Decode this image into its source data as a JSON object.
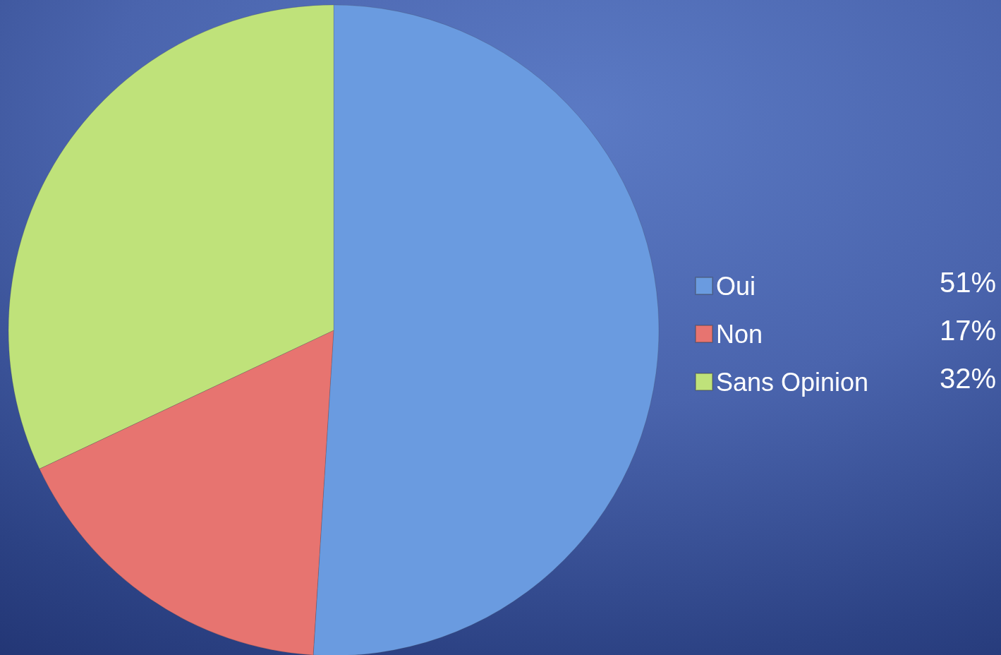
{
  "chart_data": {
    "type": "pie",
    "categories": [
      "Oui",
      "Non",
      "Sans Opinion"
    ],
    "values": [
      51,
      17,
      32
    ],
    "value_labels": [
      "51%",
      "17%",
      "32%"
    ],
    "colors": [
      "#6a9be0",
      "#e77470",
      "#bfe27a"
    ],
    "legend": "right"
  }
}
